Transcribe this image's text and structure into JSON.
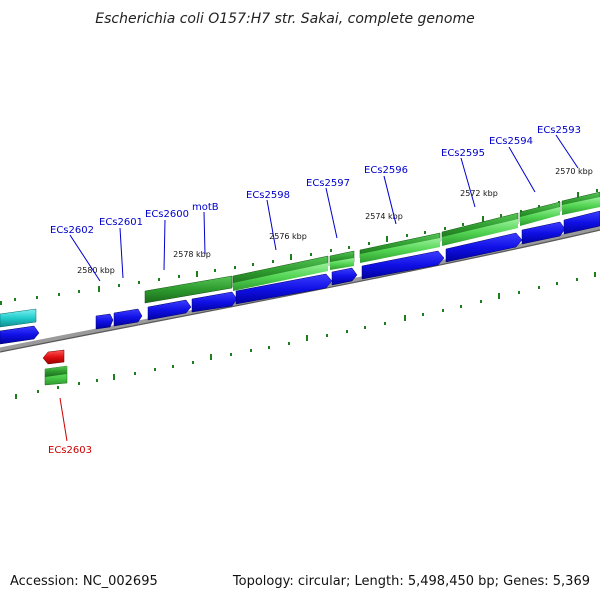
{
  "title": "Escherichia coli O157:H7 str. Sakai, complete genome",
  "footer": {
    "accession": "Accession: NC_002695",
    "topology": "Topology: circular; Length: 5,498,450 bp; Genes: 5,369"
  },
  "colors": {
    "forward_gene": "#1010e6",
    "reverse_gene": "#e01010",
    "cds_green": "#2e9a2e",
    "tick_green": "#1f7f1f",
    "label_blue": "#0000cc",
    "label_red": "#cc0000",
    "backbone": "#808080",
    "cyan_feature": "#22cccc"
  },
  "scale_labels": [
    "2580 kbp",
    "2578 kbp",
    "2576 kbp",
    "2574 kbp",
    "2572 kbp",
    "2570 kbp"
  ],
  "gene_labels": [
    {
      "id": "ecs2602",
      "text": "ECs2602",
      "strand": "forward"
    },
    {
      "id": "ecs2601",
      "text": "ECs2601",
      "strand": "forward"
    },
    {
      "id": "ecs2600",
      "text": "ECs2600",
      "strand": "forward"
    },
    {
      "id": "motb",
      "text": "motB",
      "strand": "forward"
    },
    {
      "id": "ecs2598",
      "text": "ECs2598",
      "strand": "forward"
    },
    {
      "id": "ecs2597",
      "text": "ECs2597",
      "strand": "forward"
    },
    {
      "id": "ecs2596",
      "text": "ECs2596",
      "strand": "forward"
    },
    {
      "id": "ecs2595",
      "text": "ECs2595",
      "strand": "forward"
    },
    {
      "id": "ecs2594",
      "text": "ECs2594",
      "strand": "forward"
    },
    {
      "id": "ecs2593",
      "text": "ECs2593",
      "strand": "forward"
    },
    {
      "id": "ecs2603",
      "text": "ECs2603",
      "strand": "reverse"
    }
  ]
}
